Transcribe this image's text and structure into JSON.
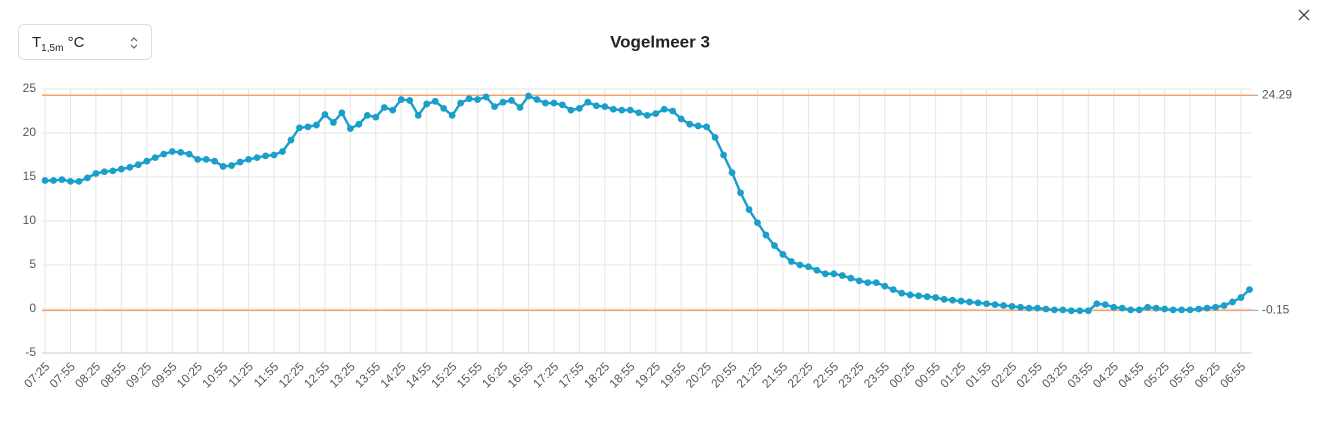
{
  "selector": {
    "symbol": "T",
    "subscript": "1,5m",
    "unit": "°C"
  },
  "chart_data": {
    "type": "line",
    "title": "Vogelmeer 3",
    "color": "#1a9fca",
    "grid": true,
    "ylim": [
      -5,
      25
    ],
    "yticks": [
      -5,
      0,
      5,
      10,
      15,
      20,
      25
    ],
    "hlines": [
      24.29,
      -0.15
    ],
    "hline_color": "#f0a470",
    "categories": [
      "07:25",
      null,
      null,
      "07:55",
      null,
      null,
      "08:25",
      null,
      null,
      "08:55",
      null,
      null,
      "09:25",
      null,
      null,
      "09:55",
      null,
      null,
      "10:25",
      null,
      null,
      "10:55",
      null,
      null,
      "11:25",
      null,
      null,
      "11:55",
      null,
      null,
      "12:25",
      null,
      null,
      "12:55",
      null,
      null,
      "13:25",
      null,
      null,
      "13:55",
      null,
      null,
      "14:25",
      null,
      null,
      "14:55",
      null,
      null,
      "15:25",
      null,
      null,
      "15:55",
      null,
      null,
      "16:25",
      null,
      null,
      "16:55",
      null,
      null,
      "17:25",
      null,
      null,
      "17:55",
      null,
      null,
      "18:25",
      null,
      null,
      "18:55",
      null,
      null,
      "19:25",
      null,
      null,
      "19:55",
      null,
      null,
      "20:25",
      null,
      null,
      "20:55",
      null,
      null,
      "21:25",
      null,
      null,
      "21:55",
      null,
      null,
      "22:25",
      null,
      null,
      "22:55",
      null,
      null,
      "23:25",
      null,
      null,
      "23:55",
      null,
      null,
      "00:25",
      null,
      null,
      "00:55",
      null,
      null,
      "01:25",
      null,
      null,
      "01:55",
      null,
      null,
      "02:25",
      null,
      null,
      "02:55",
      null,
      null,
      "03:25",
      null,
      null,
      "03:55",
      null,
      null,
      "04:25",
      null,
      null,
      "04:55",
      null,
      null,
      "05:25",
      null,
      null,
      "05:55",
      null,
      null,
      "06:25",
      null,
      null,
      "06:55",
      null
    ],
    "values": [
      14.6,
      14.6,
      14.7,
      14.5,
      14.5,
      14.9,
      15.4,
      15.6,
      15.7,
      15.9,
      16.1,
      16.4,
      16.8,
      17.2,
      17.6,
      17.9,
      17.8,
      17.6,
      17.0,
      17.0,
      16.8,
      16.2,
      16.3,
      16.7,
      17.0,
      17.2,
      17.4,
      17.5,
      17.9,
      19.2,
      20.6,
      20.7,
      20.9,
      22.1,
      21.2,
      22.3,
      20.5,
      21.0,
      22.0,
      21.8,
      22.9,
      22.6,
      23.8,
      23.7,
      22.0,
      23.3,
      23.6,
      22.8,
      22.0,
      23.4,
      23.9,
      23.8,
      24.1,
      23.0,
      23.5,
      23.7,
      22.9,
      24.2,
      23.8,
      23.4,
      23.4,
      23.2,
      22.6,
      22.8,
      23.5,
      23.1,
      23.0,
      22.7,
      22.6,
      22.6,
      22.3,
      22.0,
      22.2,
      22.7,
      22.5,
      21.6,
      21.0,
      20.8,
      20.7,
      19.5,
      17.5,
      15.5,
      13.2,
      11.3,
      9.8,
      8.4,
      7.2,
      6.2,
      5.4,
      5.0,
      4.8,
      4.4,
      4.0,
      4.0,
      3.8,
      3.5,
      3.2,
      3.0,
      3.0,
      2.6,
      2.2,
      1.8,
      1.6,
      1.5,
      1.4,
      1.3,
      1.1,
      1.0,
      0.9,
      0.8,
      0.7,
      0.6,
      0.5,
      0.4,
      0.3,
      0.2,
      0.1,
      0.1,
      0.0,
      -0.1,
      -0.1,
      -0.2,
      -0.2,
      -0.2,
      0.6,
      0.5,
      0.2,
      0.1,
      -0.1,
      -0.1,
      0.2,
      0.1,
      0.0,
      -0.1,
      -0.1,
      -0.1,
      0.0,
      0.1,
      0.2,
      0.4,
      0.8,
      1.3,
      2.2
    ]
  }
}
